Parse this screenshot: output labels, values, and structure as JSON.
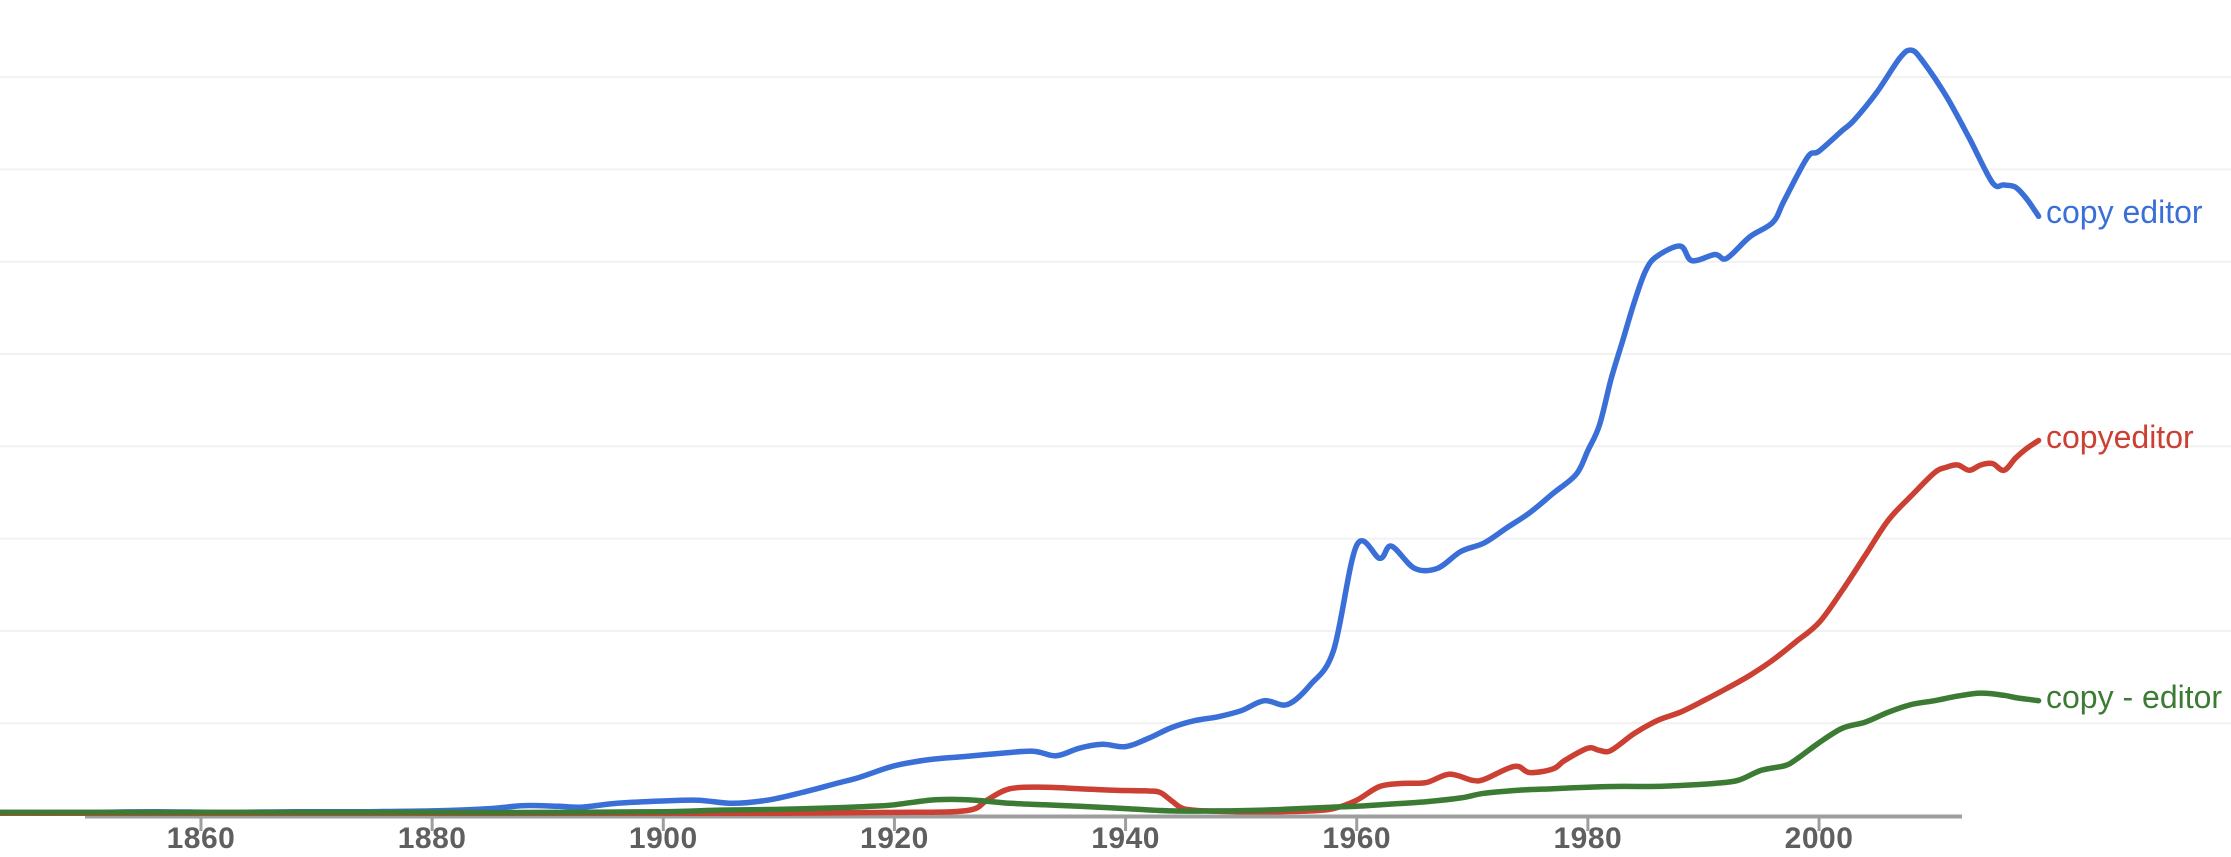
{
  "chart_data": {
    "type": "line",
    "x_axis": {
      "ticks": [
        1860,
        1880,
        1900,
        1920,
        1940,
        1960,
        1980,
        2000
      ],
      "visible_range": [
        1842,
        2019
      ]
    },
    "y_axis": {
      "tick_labels_visible": false,
      "gridlines": 8
    },
    "value_scale": "relative frequency, 0-100 where 100 = 'copy editor' peak around 2008 (no y-axis labels shown in chart)",
    "legend_position": "labels at right end of each line",
    "series": [
      {
        "name": "copy editor",
        "color": "#3a6fd8",
        "points": [
          [
            1842,
            0.4
          ],
          [
            1850,
            0.4
          ],
          [
            1856,
            0.5
          ],
          [
            1862,
            0.4
          ],
          [
            1868,
            0.5
          ],
          [
            1874,
            0.5
          ],
          [
            1880,
            0.6
          ],
          [
            1885,
            0.9
          ],
          [
            1888,
            1.3
          ],
          [
            1891,
            1.2
          ],
          [
            1893,
            1.1
          ],
          [
            1896,
            1.6
          ],
          [
            1900,
            1.9
          ],
          [
            1903,
            2.0
          ],
          [
            1906,
            1.6
          ],
          [
            1909,
            2.0
          ],
          [
            1912,
            3.0
          ],
          [
            1915,
            4.2
          ],
          [
            1917,
            5.0
          ],
          [
            1920,
            6.5
          ],
          [
            1923,
            7.3
          ],
          [
            1926,
            7.7
          ],
          [
            1929,
            8.1
          ],
          [
            1932,
            8.4
          ],
          [
            1934,
            7.8
          ],
          [
            1936,
            8.8
          ],
          [
            1938,
            9.3
          ],
          [
            1940,
            9.0
          ],
          [
            1942,
            10.1
          ],
          [
            1944,
            11.5
          ],
          [
            1946,
            12.4
          ],
          [
            1948,
            12.9
          ],
          [
            1950,
            13.7
          ],
          [
            1952,
            15.0
          ],
          [
            1954,
            14.5
          ],
          [
            1956,
            17.1
          ],
          [
            1958,
            21.6
          ],
          [
            1960,
            35.3
          ],
          [
            1962,
            33.6
          ],
          [
            1963,
            35.2
          ],
          [
            1965,
            32.3
          ],
          [
            1967,
            32.3
          ],
          [
            1969,
            34.5
          ],
          [
            1971,
            35.6
          ],
          [
            1973,
            37.6
          ],
          [
            1975,
            39.6
          ],
          [
            1977,
            42.1
          ],
          [
            1979,
            44.6
          ],
          [
            1980,
            47.7
          ],
          [
            1981,
            51.0
          ],
          [
            1982,
            57.0
          ],
          [
            1983,
            62.0
          ],
          [
            1984,
            67.0
          ],
          [
            1985,
            71.2
          ],
          [
            1986,
            73.1
          ],
          [
            1988,
            74.4
          ],
          [
            1989,
            72.5
          ],
          [
            1991,
            73.3
          ],
          [
            1992,
            72.8
          ],
          [
            1994,
            75.6
          ],
          [
            1996,
            77.5
          ],
          [
            1997,
            80.4
          ],
          [
            1999,
            86.0
          ],
          [
            2000,
            86.8
          ],
          [
            2002,
            89.5
          ],
          [
            2003,
            90.8
          ],
          [
            2005,
            94.5
          ],
          [
            2007,
            99.0
          ],
          [
            2008,
            100.0
          ],
          [
            2009,
            98.5
          ],
          [
            2011,
            94.0
          ],
          [
            2013,
            88.5
          ],
          [
            2015,
            82.7
          ],
          [
            2016,
            82.4
          ],
          [
            2017,
            82.1
          ],
          [
            2018,
            80.5
          ],
          [
            2019,
            78.3
          ]
        ]
      },
      {
        "name": "copyeditor",
        "color": "#cb4032",
        "points": [
          [
            1842,
            0.3
          ],
          [
            1860,
            0.3
          ],
          [
            1880,
            0.3
          ],
          [
            1900,
            0.3
          ],
          [
            1910,
            0.3
          ],
          [
            1920,
            0.4
          ],
          [
            1925,
            0.5
          ],
          [
            1927,
            0.9
          ],
          [
            1928,
            2.0
          ],
          [
            1930,
            3.5
          ],
          [
            1933,
            3.7
          ],
          [
            1936,
            3.5
          ],
          [
            1939,
            3.3
          ],
          [
            1942,
            3.2
          ],
          [
            1943,
            3.0
          ],
          [
            1944,
            1.9
          ],
          [
            1945,
            0.9
          ],
          [
            1947,
            0.6
          ],
          [
            1950,
            0.5
          ],
          [
            1953,
            0.5
          ],
          [
            1956,
            0.6
          ],
          [
            1958,
            0.9
          ],
          [
            1960,
            2.0
          ],
          [
            1962,
            3.8
          ],
          [
            1964,
            4.2
          ],
          [
            1966,
            4.3
          ],
          [
            1968,
            5.4
          ],
          [
            1970,
            4.6
          ],
          [
            1971,
            4.7
          ],
          [
            1973,
            6.1
          ],
          [
            1974,
            6.4
          ],
          [
            1975,
            5.6
          ],
          [
            1977,
            6.1
          ],
          [
            1978,
            7.2
          ],
          [
            1980,
            8.8
          ],
          [
            1981,
            8.5
          ],
          [
            1982,
            8.5
          ],
          [
            1984,
            10.7
          ],
          [
            1986,
            12.4
          ],
          [
            1988,
            13.5
          ],
          [
            1990,
            15.0
          ],
          [
            1992,
            16.6
          ],
          [
            1994,
            18.3
          ],
          [
            1996,
            20.3
          ],
          [
            1998,
            22.7
          ],
          [
            2000,
            25.2
          ],
          [
            2002,
            29.4
          ],
          [
            2004,
            34.0
          ],
          [
            2006,
            38.6
          ],
          [
            2008,
            41.8
          ],
          [
            2010,
            44.8
          ],
          [
            2011,
            45.5
          ],
          [
            2012,
            45.8
          ],
          [
            2013,
            45.1
          ],
          [
            2014,
            45.8
          ],
          [
            2015,
            46.0
          ],
          [
            2016,
            45.1
          ],
          [
            2017,
            46.7
          ],
          [
            2018,
            48.0
          ],
          [
            2019,
            49.0
          ]
        ]
      },
      {
        "name": "copy - editor",
        "color": "#3c7b34",
        "points": [
          [
            1842,
            0.4
          ],
          [
            1860,
            0.4
          ],
          [
            1880,
            0.4
          ],
          [
            1890,
            0.4
          ],
          [
            1900,
            0.5
          ],
          [
            1905,
            0.7
          ],
          [
            1910,
            0.8
          ],
          [
            1915,
            1.0
          ],
          [
            1918,
            1.2
          ],
          [
            1920,
            1.4
          ],
          [
            1923,
            2.0
          ],
          [
            1925,
            2.1
          ],
          [
            1927,
            2.0
          ],
          [
            1930,
            1.6
          ],
          [
            1933,
            1.4
          ],
          [
            1936,
            1.2
          ],
          [
            1940,
            0.9
          ],
          [
            1944,
            0.6
          ],
          [
            1948,
            0.6
          ],
          [
            1952,
            0.7
          ],
          [
            1955,
            0.9
          ],
          [
            1958,
            1.1
          ],
          [
            1960,
            1.2
          ],
          [
            1963,
            1.5
          ],
          [
            1966,
            1.8
          ],
          [
            1969,
            2.3
          ],
          [
            1971,
            2.9
          ],
          [
            1974,
            3.3
          ],
          [
            1977,
            3.5
          ],
          [
            1980,
            3.7
          ],
          [
            1983,
            3.8
          ],
          [
            1986,
            3.8
          ],
          [
            1989,
            4.0
          ],
          [
            1991,
            4.2
          ],
          [
            1993,
            4.6
          ],
          [
            1995,
            5.9
          ],
          [
            1997,
            6.5
          ],
          [
            1998,
            7.3
          ],
          [
            2000,
            9.5
          ],
          [
            2002,
            11.4
          ],
          [
            2004,
            12.2
          ],
          [
            2006,
            13.5
          ],
          [
            2008,
            14.5
          ],
          [
            2010,
            15.0
          ],
          [
            2012,
            15.6
          ],
          [
            2014,
            16.0
          ],
          [
            2016,
            15.7
          ],
          [
            2017,
            15.4
          ],
          [
            2018,
            15.2
          ],
          [
            2019,
            15.0
          ]
        ]
      }
    ]
  },
  "colors": {
    "background": "#ffffff",
    "gridline": "#f1f1f1",
    "axis": "#9e9e9e",
    "tick_label": "#5f5f5f"
  }
}
